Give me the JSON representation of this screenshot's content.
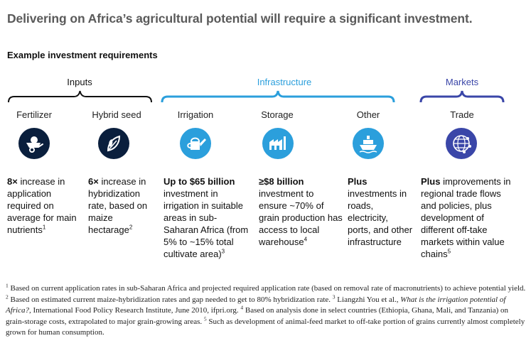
{
  "title": "Delivering on Africa’s agricultural potential will require a significant investment.",
  "subtitle": "Example investment requirements",
  "groups": {
    "inputs": "Inputs",
    "infrastructure": "Infrastructure",
    "markets": "Markets"
  },
  "colors": {
    "dark": "#0a1f3d",
    "blue": "#2b9fdc",
    "purple": "#3a46a8",
    "brace_dark": "#111111"
  },
  "columns": [
    {
      "label": "Fertilizer",
      "icon": "wheelbarrow-icon",
      "desc": {
        "bold": "8×",
        "text": " increase in application required on average for main nutrients",
        "sup": "1"
      }
    },
    {
      "label": "Hybrid seed",
      "icon": "seed-leaf-icon",
      "desc": {
        "bold": "6×",
        "text": " increase in hybridization rate, based on maize hectarage",
        "sup": "2"
      }
    },
    {
      "label": "Irrigation",
      "icon": "watering-can-icon",
      "desc": {
        "bold": "Up to $65 billion",
        "text": " investment in irrigation in suitable areas in sub-Saharan Africa (from 5% to ~15% total cultivate area)",
        "sup": "3"
      }
    },
    {
      "label": "Storage",
      "icon": "warehouse-icon",
      "desc": {
        "bold": "≥$8 billion",
        "text": " investment to ensure ~70% of grain production has access to local warehouse",
        "sup": "4"
      }
    },
    {
      "label": "Other",
      "icon": "ship-icon",
      "desc": {
        "bold": "Plus",
        "text": " investments in roads, electricity, ports, and other infrastructure",
        "sup": ""
      }
    },
    {
      "label": "Trade",
      "icon": "globe-network-icon",
      "desc": {
        "bold": "Plus",
        "text": " improvements in regional trade flows and policies, plus development of different off-take markets within value chains",
        "sup": "5"
      }
    }
  ],
  "footnotes": {
    "n1": "1",
    "t1": "Based on current application rates in sub-Saharan Africa and projected required application rate (based on removal rate of macronutrients) to achieve potential yield.",
    "n2": "2",
    "t2": "Based on estimated current maize-hybridization rates and gap needed to get to 80% hybridization rate.",
    "n3": "3",
    "t3a": "Liangzhi You et al.,",
    "t3i": "What is the irrigation potential of Africa?,",
    "t3b": "International Food Policy Research Institute, June 2010, ifpri.org.",
    "n4": "4",
    "t4": "Based on analysis done in select countries (Ethiopia, Ghana, Mali, and Tanzania) on grain-storage costs, extrapolated to major grain-growing areas.",
    "n5": "5",
    "t5": "Such as development of animal-feed market to off-take portion of grains currently almost completely grown for human consumption."
  }
}
